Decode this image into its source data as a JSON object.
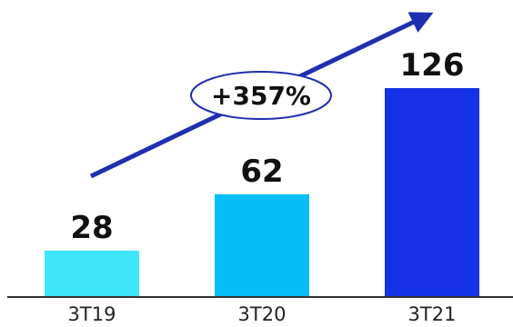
{
  "chart_data": {
    "type": "bar",
    "categories": [
      "3T19",
      "3T20",
      "3T21"
    ],
    "values": [
      28,
      62,
      126
    ],
    "value_labels": [
      "28",
      "62",
      "126"
    ],
    "bar_colors": [
      "#3ee6f7",
      "#06bdf8",
      "#1632e6"
    ],
    "ylim": [
      0,
      126
    ],
    "grid": false,
    "axis_color": "#333333",
    "growth_annotation": {
      "text": "+357%",
      "arrow_color": "#1f2fb0",
      "ellipse_stroke": "#1f2fb0"
    }
  }
}
